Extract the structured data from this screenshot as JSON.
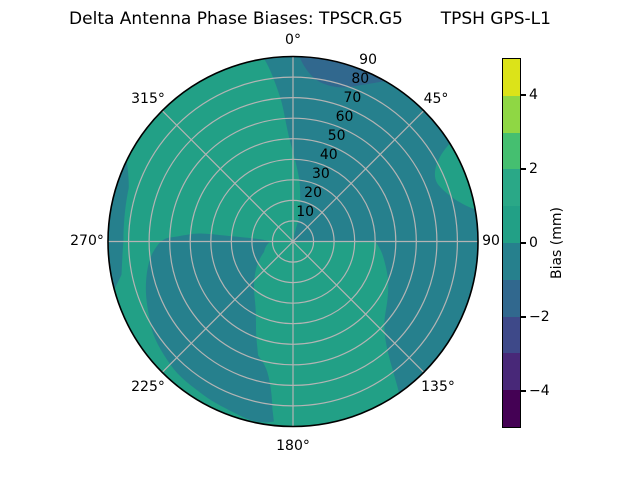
{
  "title": "Delta Antenna Phase Biases: TPSCR.G5       TPSH GPS-L1",
  "polar": {
    "theta_labels": [
      "0°",
      "45°",
      "90",
      "135°",
      "180°",
      "225°",
      "270°",
      "315°"
    ],
    "r_tick_labels": [
      "10",
      "20",
      "30",
      "40",
      "50",
      "60",
      "70",
      "80",
      "90"
    ]
  },
  "colorbar": {
    "label": "Bias (mm)",
    "range_min": -5,
    "range_max": 5,
    "ticks": [
      {
        "label": "4",
        "value": 4
      },
      {
        "label": "2",
        "value": 2
      },
      {
        "label": "0",
        "value": 0
      },
      {
        "label": "−2",
        "value": -2
      },
      {
        "label": "−4",
        "value": -4
      }
    ],
    "band_colors_top_to_bottom": [
      "#dce319",
      "#8fd744",
      "#45bf70",
      "#2aa887",
      "#22a086",
      "#26808d",
      "#31688e",
      "#3e4989",
      "#482878",
      "#440154"
    ]
  },
  "plot_colors": {
    "band_0_to_1": "#22a086",
    "band_minus1_to_0": "#26808d",
    "band_minus2_to_minus1": "#31688e",
    "grid": "#b4b4b4",
    "spine": "#000000"
  },
  "chart_data": {
    "type": "heatmap",
    "subtype": "polar_filled_contour",
    "title": "Delta Antenna Phase Biases: TPSCR.G5 / TPSH GPS-L1",
    "theta_zero_location": "top",
    "theta_direction": "clockwise",
    "theta_ticks_deg": [
      0,
      45,
      90,
      135,
      180,
      225,
      270,
      315
    ],
    "r_ticks": [
      10,
      20,
      30,
      40,
      50,
      60,
      70,
      80,
      90
    ],
    "r_max": 90,
    "r_axis_label_angle_deg": 22.5,
    "colorbar": {
      "label": "Bias (mm)",
      "range": [
        -5,
        5
      ],
      "level_step": 1,
      "ticks": [
        -4,
        -2,
        0,
        2,
        4
      ],
      "colormap": "viridis",
      "discrete_bands": 10
    },
    "value_bands_mm": [
      {
        "band": "0 to 1",
        "region": "background: upper-left sector (~291°-351°), bottom sector (~145°-196°), inner wedge right of center below horizontal (r<40), ring gaps around dark blobs"
      },
      {
        "band": "-1 to 0",
        "region": "large swirl from rim ~351° clockwise through 0°,45°,90° to ~145°, reaching center as a narrowing tongue along ~0°-15°"
      },
      {
        "band": "-1 to 0",
        "region": "left kidney blob ~186°-276°, r from ~11 near 270° out to ~89 near 186°"
      },
      {
        "band": "-1 to 0",
        "region": "left rim sliver ~255°-296°, r ~82-90"
      },
      {
        "band": "-2 to -1",
        "region": "top rim patch ~2°-30°, r ~79-90"
      },
      {
        "band": "0 to 1",
        "region": "rim sliver ~58°-80°, r ~76-90 (light gap in dark sector)"
      }
    ],
    "approx_value_range_observed_mm": [
      -2,
      1
    ]
  }
}
